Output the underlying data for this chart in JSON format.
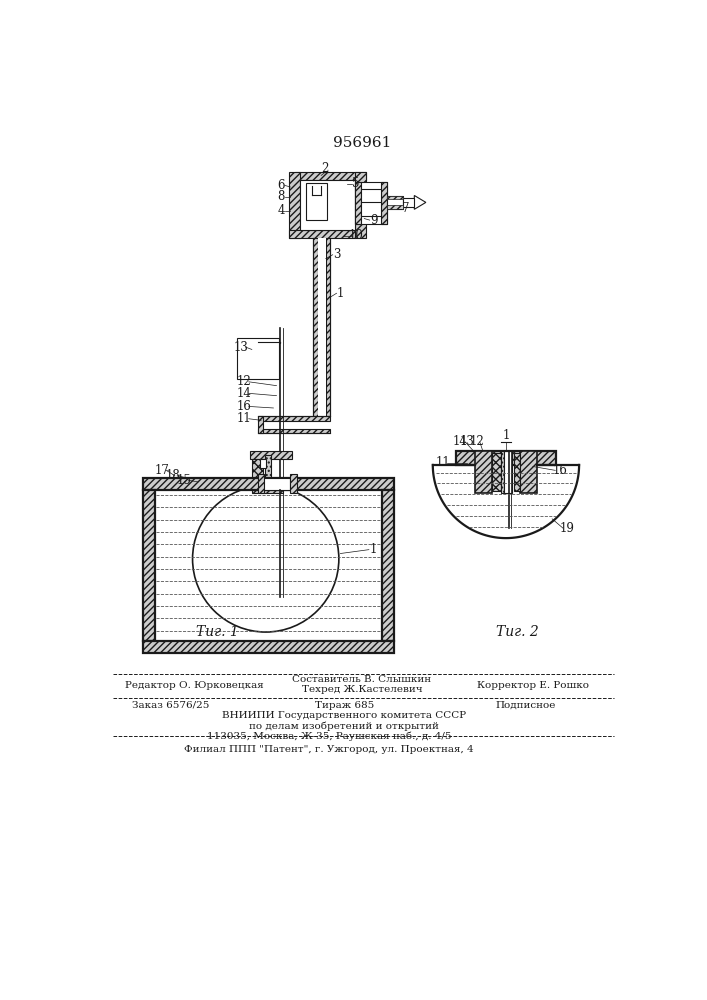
{
  "patent_number": "956961",
  "fig1_label": "Τиг. 1",
  "fig2_label": "Τиг. 2",
  "footer_line1_left": "Редактор О. Юрковецкая",
  "footer_line1_center": "Составитель В. Слышкин",
  "footer_line2_center": "Техред Ж.Кастелевич",
  "footer_line2_right": "Корректор Е. Рошко",
  "footer_order": "Заказ 6576/25",
  "footer_tirazh": "Тираж 685",
  "footer_podpisnoe": "Подписное",
  "footer_vnipi": "ВНИИПИ Государственного комитета СССР",
  "footer_po_delam": "по делам изобретений и открытий",
  "footer_address": "113035, Москва, Ж-35, Раушская наб., д. 4/5",
  "footer_filial": "Филиал ППП \"Патент\", г. Ужгород, ул. Проектная, 4",
  "bg_color": "#ffffff",
  "line_color": "#1a1a1a"
}
